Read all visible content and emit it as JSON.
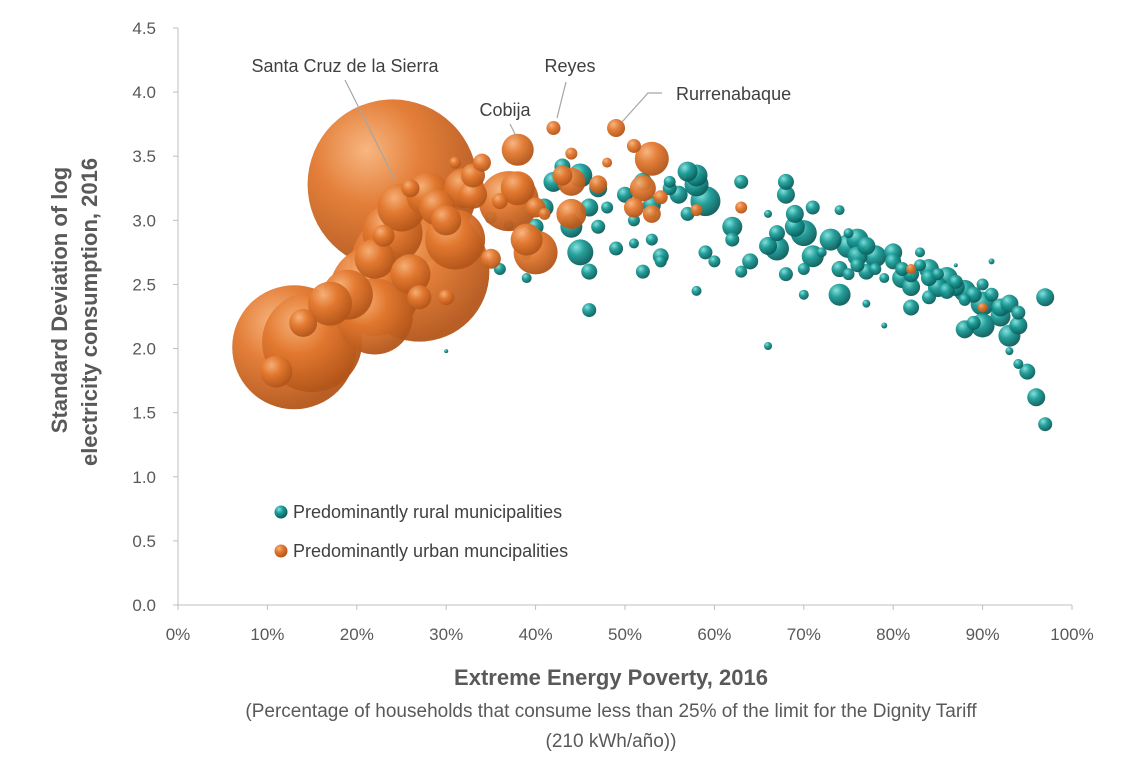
{
  "chart_data": {
    "type": "scatter",
    "subtype": "bubble",
    "xlabel": "Extreme Energy Poverty, 2016",
    "xlabel_sub_line1": "(Percentage of households that consume less than 25% of the limit for the Dignity Tariff",
    "xlabel_sub_line2": "(210 kWh/año))",
    "ylabel_line1": "Standard Deviation of log",
    "ylabel_line2": "electricity consumption, 2016",
    "xlim": [
      0,
      1
    ],
    "ylim": [
      0,
      4.5
    ],
    "x_ticks": [
      0,
      0.1,
      0.2,
      0.3,
      0.4,
      0.5,
      0.6,
      0.7,
      0.8,
      0.9,
      1.0
    ],
    "x_tick_labels": [
      "0%",
      "10%",
      "20%",
      "30%",
      "40%",
      "50%",
      "60%",
      "70%",
      "80%",
      "90%",
      "100%"
    ],
    "y_ticks": [
      0,
      0.5,
      1,
      1.5,
      2,
      2.5,
      3,
      3.5,
      4,
      4.5
    ],
    "y_tick_labels": [
      "0.0",
      "0.5",
      "1.0",
      "1.5",
      "2.0",
      "2.5",
      "3.0",
      "3.5",
      "4.0",
      "4.5"
    ],
    "grid": false,
    "legend_position": "bottom-left",
    "series": [
      {
        "name": "Predominantly rural municipalities",
        "color": "#1a9a96",
        "points": [
          [
            0.3,
            1.98,
            2
          ],
          [
            0.35,
            3.02,
            6
          ],
          [
            0.36,
            2.62,
            6
          ],
          [
            0.37,
            2.96,
            5
          ],
          [
            0.39,
            2.55,
            5
          ],
          [
            0.39,
            2.73,
            5
          ],
          [
            0.4,
            2.95,
            8
          ],
          [
            0.41,
            3.1,
            9
          ],
          [
            0.42,
            3.3,
            10
          ],
          [
            0.43,
            3.42,
            8
          ],
          [
            0.44,
            3.0,
            7
          ],
          [
            0.44,
            2.95,
            11
          ],
          [
            0.45,
            3.35,
            12
          ],
          [
            0.45,
            2.75,
            13
          ],
          [
            0.46,
            3.1,
            9
          ],
          [
            0.46,
            2.6,
            8
          ],
          [
            0.46,
            2.3,
            7
          ],
          [
            0.47,
            2.95,
            7
          ],
          [
            0.47,
            3.25,
            9
          ],
          [
            0.48,
            3.1,
            6
          ],
          [
            0.49,
            2.78,
            7
          ],
          [
            0.5,
            3.2,
            8
          ],
          [
            0.51,
            3.0,
            6
          ],
          [
            0.51,
            2.82,
            5
          ],
          [
            0.52,
            3.3,
            9
          ],
          [
            0.52,
            2.6,
            7
          ],
          [
            0.53,
            2.85,
            6
          ],
          [
            0.53,
            3.12,
            9
          ],
          [
            0.53,
            3.05,
            5
          ],
          [
            0.54,
            2.72,
            8
          ],
          [
            0.54,
            2.68,
            6
          ],
          [
            0.55,
            3.25,
            7
          ],
          [
            0.55,
            3.3,
            6
          ],
          [
            0.56,
            3.2,
            9
          ],
          [
            0.57,
            3.38,
            10
          ],
          [
            0.57,
            3.05,
            7
          ],
          [
            0.58,
            3.35,
            11
          ],
          [
            0.58,
            3.28,
            12
          ],
          [
            0.58,
            2.45,
            5
          ],
          [
            0.59,
            3.15,
            15
          ],
          [
            0.59,
            2.75,
            7
          ],
          [
            0.6,
            2.68,
            6
          ],
          [
            0.62,
            2.95,
            10
          ],
          [
            0.62,
            2.85,
            7
          ],
          [
            0.63,
            2.6,
            6
          ],
          [
            0.63,
            3.3,
            7
          ],
          [
            0.64,
            2.68,
            8
          ],
          [
            0.66,
            3.05,
            4
          ],
          [
            0.66,
            2.8,
            9
          ],
          [
            0.66,
            2.02,
            4
          ],
          [
            0.67,
            2.9,
            8
          ],
          [
            0.67,
            2.78,
            12
          ],
          [
            0.68,
            3.2,
            9
          ],
          [
            0.68,
            3.3,
            8
          ],
          [
            0.68,
            2.58,
            7
          ],
          [
            0.69,
            2.95,
            10
          ],
          [
            0.69,
            3.05,
            9
          ],
          [
            0.7,
            2.9,
            13
          ],
          [
            0.7,
            2.42,
            5
          ],
          [
            0.7,
            2.62,
            6
          ],
          [
            0.71,
            2.72,
            11
          ],
          [
            0.71,
            3.1,
            7
          ],
          [
            0.72,
            2.75,
            5
          ],
          [
            0.73,
            2.85,
            11
          ],
          [
            0.74,
            2.62,
            8
          ],
          [
            0.74,
            2.42,
            11
          ],
          [
            0.74,
            3.08,
            5
          ],
          [
            0.75,
            2.8,
            12
          ],
          [
            0.75,
            2.58,
            6
          ],
          [
            0.75,
            2.9,
            5
          ],
          [
            0.76,
            2.65,
            7
          ],
          [
            0.76,
            2.72,
            10
          ],
          [
            0.76,
            2.85,
            11
          ],
          [
            0.77,
            2.6,
            8
          ],
          [
            0.77,
            2.8,
            9
          ],
          [
            0.77,
            2.35,
            4
          ],
          [
            0.78,
            2.72,
            11
          ],
          [
            0.78,
            2.62,
            6
          ],
          [
            0.79,
            2.18,
            3
          ],
          [
            0.79,
            2.55,
            5
          ],
          [
            0.8,
            2.75,
            9
          ],
          [
            0.8,
            2.68,
            8
          ],
          [
            0.81,
            2.62,
            7
          ],
          [
            0.81,
            2.55,
            10
          ],
          [
            0.82,
            2.58,
            8
          ],
          [
            0.82,
            2.48,
            9
          ],
          [
            0.82,
            2.32,
            8
          ],
          [
            0.83,
            2.75,
            5
          ],
          [
            0.83,
            2.65,
            6
          ],
          [
            0.84,
            2.62,
            10
          ],
          [
            0.84,
            2.55,
            8
          ],
          [
            0.84,
            2.4,
            7
          ],
          [
            0.85,
            2.48,
            10
          ],
          [
            0.85,
            2.58,
            6
          ],
          [
            0.86,
            2.55,
            11
          ],
          [
            0.86,
            2.45,
            8
          ],
          [
            0.87,
            2.65,
            2
          ],
          [
            0.87,
            2.52,
            7
          ],
          [
            0.87,
            2.48,
            9
          ],
          [
            0.88,
            2.45,
            11
          ],
          [
            0.88,
            2.15,
            9
          ],
          [
            0.88,
            2.38,
            6
          ],
          [
            0.89,
            2.42,
            8
          ],
          [
            0.89,
            2.2,
            7
          ],
          [
            0.9,
            2.35,
            12
          ],
          [
            0.9,
            2.18,
            12
          ],
          [
            0.9,
            2.5,
            6
          ],
          [
            0.91,
            2.68,
            3
          ],
          [
            0.91,
            2.42,
            7
          ],
          [
            0.92,
            2.32,
            9
          ],
          [
            0.92,
            2.25,
            10
          ],
          [
            0.93,
            2.35,
            9
          ],
          [
            0.93,
            2.1,
            11
          ],
          [
            0.93,
            1.98,
            4
          ],
          [
            0.94,
            2.28,
            7
          ],
          [
            0.94,
            1.88,
            5
          ],
          [
            0.94,
            2.18,
            9
          ],
          [
            0.95,
            1.82,
            8
          ],
          [
            0.96,
            1.62,
            9
          ],
          [
            0.97,
            1.41,
            7
          ],
          [
            0.97,
            2.4,
            9
          ]
        ]
      },
      {
        "name": "Predominantly urban muncipalities",
        "color": "#e2782f",
        "points": [
          [
            0.13,
            2.01,
            62
          ],
          [
            0.24,
            3.28,
            85
          ],
          [
            0.27,
            2.6,
            70
          ],
          [
            0.15,
            2.05,
            50
          ],
          [
            0.22,
            2.45,
            45
          ],
          [
            0.31,
            2.85,
            30
          ],
          [
            0.24,
            2.9,
            30
          ],
          [
            0.19,
            2.42,
            25
          ],
          [
            0.17,
            2.35,
            22
          ],
          [
            0.22,
            2.25,
            38
          ],
          [
            0.22,
            2.7,
            20
          ],
          [
            0.26,
            2.58,
            20
          ],
          [
            0.29,
            3.1,
            18
          ],
          [
            0.25,
            3.1,
            24
          ],
          [
            0.28,
            3.2,
            22
          ],
          [
            0.3,
            3.0,
            15
          ],
          [
            0.32,
            3.25,
            20
          ],
          [
            0.33,
            3.2,
            14
          ],
          [
            0.37,
            3.15,
            30
          ],
          [
            0.38,
            3.55,
            16
          ],
          [
            0.38,
            3.25,
            17
          ],
          [
            0.39,
            2.85,
            16
          ],
          [
            0.4,
            2.75,
            22
          ],
          [
            0.44,
            3.3,
            14
          ],
          [
            0.44,
            3.05,
            15
          ],
          [
            0.27,
            2.4,
            12
          ],
          [
            0.14,
            2.2,
            14
          ],
          [
            0.11,
            1.82,
            16
          ],
          [
            0.26,
            3.25,
            9
          ],
          [
            0.31,
            3.45,
            6
          ],
          [
            0.34,
            3.45,
            9
          ],
          [
            0.36,
            3.15,
            8
          ],
          [
            0.4,
            3.1,
            10
          ],
          [
            0.41,
            3.05,
            6
          ],
          [
            0.42,
            3.72,
            7
          ],
          [
            0.44,
            3.52,
            6
          ],
          [
            0.48,
            3.45,
            5
          ],
          [
            0.49,
            3.72,
            9
          ],
          [
            0.51,
            3.58,
            7
          ],
          [
            0.52,
            3.25,
            13
          ],
          [
            0.53,
            3.48,
            17
          ],
          [
            0.53,
            3.05,
            9
          ],
          [
            0.54,
            3.18,
            7
          ],
          [
            0.51,
            3.1,
            10
          ],
          [
            0.58,
            3.08,
            6
          ],
          [
            0.63,
            3.1,
            6
          ],
          [
            0.82,
            2.62,
            5
          ],
          [
            0.9,
            2.32,
            5
          ],
          [
            0.35,
            2.7,
            10
          ],
          [
            0.3,
            2.4,
            8
          ],
          [
            0.23,
            2.88,
            11
          ],
          [
            0.47,
            3.28,
            9
          ],
          [
            0.43,
            3.35,
            10
          ],
          [
            0.33,
            3.35,
            12
          ]
        ]
      }
    ],
    "annotations": [
      {
        "label": "Santa Cruz de la Sierra",
        "x": 0.24,
        "y": 3.28
      },
      {
        "label": "Reyes",
        "x": 0.42,
        "y": 3.72
      },
      {
        "label": "Cobija",
        "x": 0.38,
        "y": 3.55
      },
      {
        "label": "Rurrenabaque",
        "x": 0.49,
        "y": 3.72
      }
    ]
  }
}
